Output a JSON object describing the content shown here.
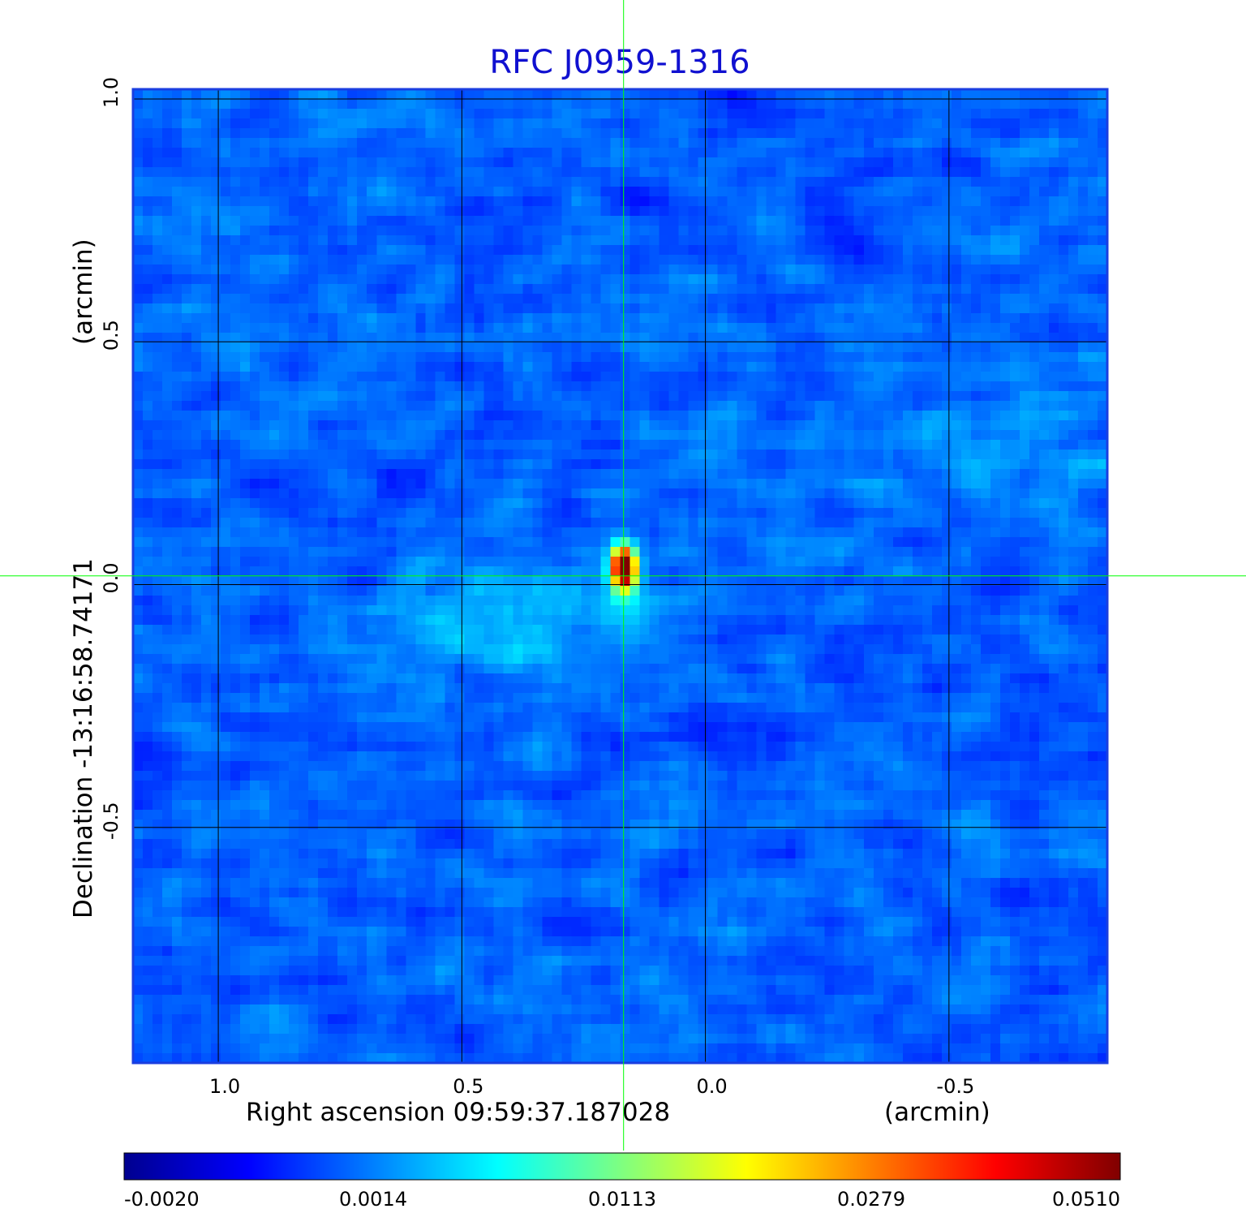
{
  "chart_data": {
    "type": "heatmap",
    "title": "RFC J0959-1316",
    "xlabel": "Right ascension  09:59:37.187028",
    "xunit": "(arcmin)",
    "ylabel": "Declination  -13:16:58.74171",
    "yunit": "(arcmin)",
    "x_ticks": [
      "1.0",
      "0.5",
      "0.0",
      "-0.5"
    ],
    "x_tick_values": [
      1.0,
      0.5,
      0.0,
      -0.5
    ],
    "y_ticks": [
      "1.0",
      "0.5",
      "0.0",
      "-0.5"
    ],
    "y_tick_values": [
      1.0,
      0.5,
      0.0,
      -0.5
    ],
    "xlim": [
      1.175,
      -0.825
    ],
    "ylim": [
      -0.985,
      1.02
    ],
    "grid": true,
    "colormap": "jet",
    "colorbar": {
      "orientation": "horizontal",
      "ticks": [
        "-0.0020",
        "0.0014",
        "0.0113",
        "0.0279",
        "0.0510"
      ],
      "tick_values": [
        -0.002,
        0.0014,
        0.0113,
        0.0279,
        0.051
      ]
    },
    "peak": {
      "x": 0.167,
      "y": 0.035,
      "value": 0.051
    },
    "crosshair": {
      "x": 0.168,
      "y": 0.018,
      "color": "#00ff00"
    },
    "colors": {
      "title": "#1010d0",
      "frame": "#1a3ee0",
      "grid": "#000000",
      "crosshair": "#00ff00"
    }
  }
}
